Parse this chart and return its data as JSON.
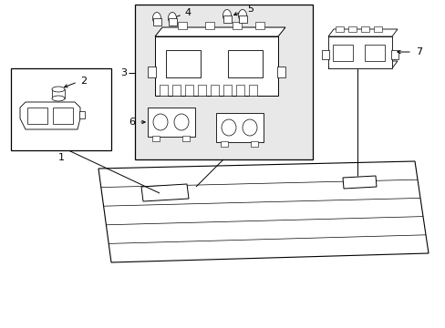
{
  "bg_color": "#ffffff",
  "light_gray": "#e8e8e8",
  "line_color": "#000000",
  "figsize": [
    4.89,
    3.6
  ],
  "dpi": 100
}
